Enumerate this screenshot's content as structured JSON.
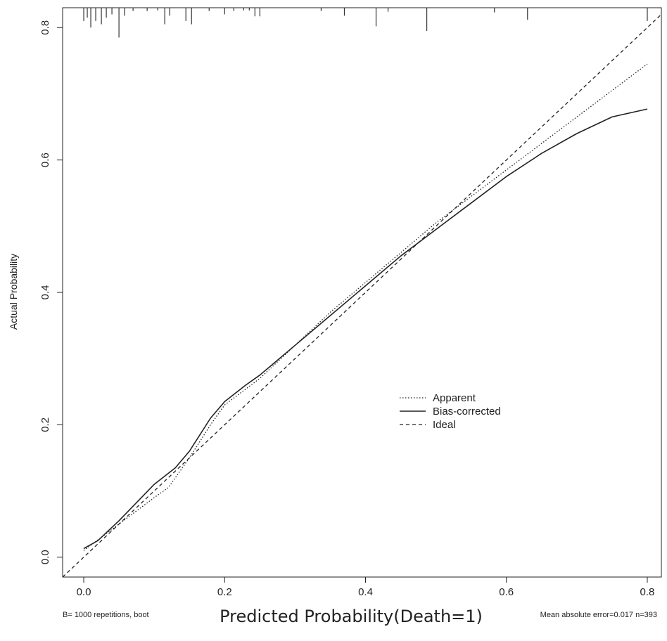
{
  "chart_data": {
    "type": "line",
    "title": "",
    "xlabel": "Predicted Probability(Death=1)",
    "ylabel": "Actual Probability",
    "xlim": [
      -0.03,
      0.82
    ],
    "ylim": [
      -0.03,
      0.83
    ],
    "x_ticks": [
      "0.0",
      "0.2",
      "0.4",
      "0.6",
      "0.8"
    ],
    "y_ticks": [
      "0.0",
      "0.2",
      "0.4",
      "0.6",
      "0.8"
    ],
    "grid": false,
    "legend_position": "center-right",
    "series": [
      {
        "name": "Apparent",
        "style": "dotted",
        "x": [
          0.0,
          0.05,
          0.1,
          0.12,
          0.15,
          0.18,
          0.2,
          0.25,
          0.3,
          0.35,
          0.4,
          0.45,
          0.5,
          0.55,
          0.6,
          0.65,
          0.7,
          0.75,
          0.8
        ],
        "y": [
          0.01,
          0.05,
          0.09,
          0.105,
          0.15,
          0.2,
          0.23,
          0.27,
          0.32,
          0.37,
          0.415,
          0.46,
          0.505,
          0.545,
          0.585,
          0.625,
          0.665,
          0.705,
          0.745
        ]
      },
      {
        "name": "Bias-corrected",
        "style": "solid",
        "x": [
          0.0,
          0.02,
          0.05,
          0.1,
          0.13,
          0.15,
          0.18,
          0.2,
          0.23,
          0.25,
          0.3,
          0.35,
          0.4,
          0.45,
          0.5,
          0.55,
          0.6,
          0.65,
          0.7,
          0.75,
          0.8
        ],
        "y": [
          0.013,
          0.025,
          0.055,
          0.11,
          0.135,
          0.16,
          0.21,
          0.235,
          0.26,
          0.275,
          0.32,
          0.365,
          0.41,
          0.455,
          0.495,
          0.535,
          0.575,
          0.61,
          0.64,
          0.665,
          0.677
        ]
      },
      {
        "name": "Ideal",
        "style": "dashed",
        "x": [
          -0.03,
          0.82
        ],
        "y": [
          -0.03,
          0.82
        ]
      }
    ],
    "rug": [
      {
        "x": 0.0,
        "h": 0.02
      },
      {
        "x": 0.005,
        "h": 0.015
      },
      {
        "x": 0.01,
        "h": 0.03
      },
      {
        "x": 0.017,
        "h": 0.02
      },
      {
        "x": 0.025,
        "h": 0.025
      },
      {
        "x": 0.032,
        "h": 0.015
      },
      {
        "x": 0.04,
        "h": 0.01
      },
      {
        "x": 0.05,
        "h": 0.045
      },
      {
        "x": 0.058,
        "h": 0.012
      },
      {
        "x": 0.07,
        "h": 0.005
      },
      {
        "x": 0.09,
        "h": 0.005
      },
      {
        "x": 0.105,
        "h": 0.004
      },
      {
        "x": 0.115,
        "h": 0.025
      },
      {
        "x": 0.122,
        "h": 0.012
      },
      {
        "x": 0.145,
        "h": 0.02
      },
      {
        "x": 0.153,
        "h": 0.025
      },
      {
        "x": 0.178,
        "h": 0.005
      },
      {
        "x": 0.2,
        "h": 0.01
      },
      {
        "x": 0.213,
        "h": 0.005
      },
      {
        "x": 0.227,
        "h": 0.004
      },
      {
        "x": 0.235,
        "h": 0.004
      },
      {
        "x": 0.243,
        "h": 0.013
      },
      {
        "x": 0.25,
        "h": 0.013
      },
      {
        "x": 0.337,
        "h": 0.005
      },
      {
        "x": 0.37,
        "h": 0.012
      },
      {
        "x": 0.415,
        "h": 0.028
      },
      {
        "x": 0.432,
        "h": 0.006
      },
      {
        "x": 0.487,
        "h": 0.035
      },
      {
        "x": 0.583,
        "h": 0.007
      },
      {
        "x": 0.63,
        "h": 0.018
      },
      {
        "x": 0.8,
        "h": 0.02
      }
    ],
    "annotations": {
      "bottom_left": "B= 1000 repetitions, boot",
      "bottom_right": "Mean absolute error=0.017 n=393"
    }
  },
  "legend": {
    "items": [
      "Apparent",
      "Bias-corrected",
      "Ideal"
    ]
  }
}
